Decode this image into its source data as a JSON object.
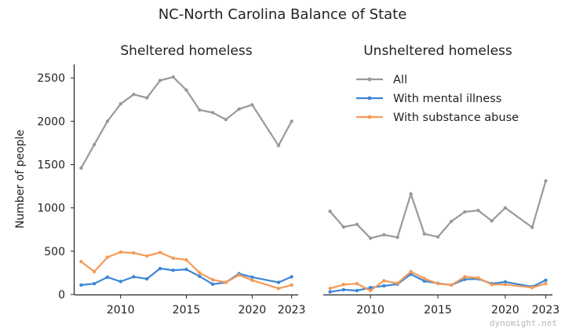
{
  "figure": {
    "title": "NC-North Carolina Balance of State",
    "ylabel": "Number of people",
    "watermark": "dynomight.net"
  },
  "legend": {
    "placement": "upper-right of right panel",
    "entries": [
      {
        "label": "All",
        "color": "#999999"
      },
      {
        "label": "With mental illness",
        "color": "#3b86d6"
      },
      {
        "label": "With substance abuse",
        "color": "#f59a57"
      }
    ]
  },
  "chart_data": [
    {
      "type": "line",
      "title": "Sheltered homeless",
      "xlabel": "",
      "ylabel": "Number of people",
      "xlim": [
        2006.5,
        2023.5
      ],
      "ylim": [
        0,
        2620
      ],
      "xticks": [
        2010,
        2015,
        2020,
        2023
      ],
      "yticks": [
        0,
        500,
        1000,
        1500,
        2000,
        2500
      ],
      "x": [
        2007,
        2008,
        2009,
        2010,
        2011,
        2012,
        2013,
        2014,
        2015,
        2016,
        2017,
        2018,
        2019,
        2020,
        2022,
        2023
      ],
      "series": [
        {
          "name": "All",
          "color": "#999999",
          "values": [
            1460,
            1730,
            2000,
            2200,
            2310,
            2270,
            2470,
            2510,
            2360,
            2130,
            2100,
            2020,
            2140,
            2190,
            1720,
            2000
          ]
        },
        {
          "name": "With mental illness",
          "color": "#3b86d6",
          "values": [
            110,
            125,
            200,
            150,
            205,
            180,
            300,
            280,
            290,
            210,
            120,
            140,
            240,
            200,
            140,
            205
          ]
        },
        {
          "name": "With substance abuse",
          "color": "#f59a57",
          "values": [
            380,
            265,
            430,
            490,
            480,
            445,
            485,
            420,
            400,
            250,
            170,
            140,
            225,
            165,
            70,
            110
          ]
        }
      ]
    },
    {
      "type": "line",
      "title": "Unsheltered homeless",
      "xlabel": "",
      "ylabel": "",
      "xlim": [
        2006.5,
        2023.5
      ],
      "ylim": [
        0,
        2620
      ],
      "xticks": [
        2010,
        2015,
        2020,
        2023
      ],
      "yticks": [
        0,
        500,
        1000,
        1500,
        2000,
        2500
      ],
      "x": [
        2007,
        2008,
        2009,
        2010,
        2011,
        2012,
        2013,
        2014,
        2015,
        2016,
        2017,
        2018,
        2019,
        2020,
        2022,
        2023
      ],
      "series": [
        {
          "name": "All",
          "color": "#999999",
          "values": [
            960,
            780,
            810,
            650,
            690,
            660,
            1160,
            700,
            665,
            845,
            955,
            970,
            850,
            1000,
            775,
            1310
          ]
        },
        {
          "name": "With mental illness",
          "color": "#3b86d6",
          "values": [
            30,
            55,
            45,
            80,
            100,
            120,
            235,
            155,
            130,
            110,
            175,
            180,
            125,
            145,
            90,
            165
          ]
        },
        {
          "name": "With substance abuse",
          "color": "#f59a57",
          "values": [
            70,
            115,
            125,
            45,
            160,
            130,
            265,
            185,
            125,
            110,
            205,
            190,
            115,
            115,
            80,
            125
          ]
        }
      ]
    }
  ]
}
